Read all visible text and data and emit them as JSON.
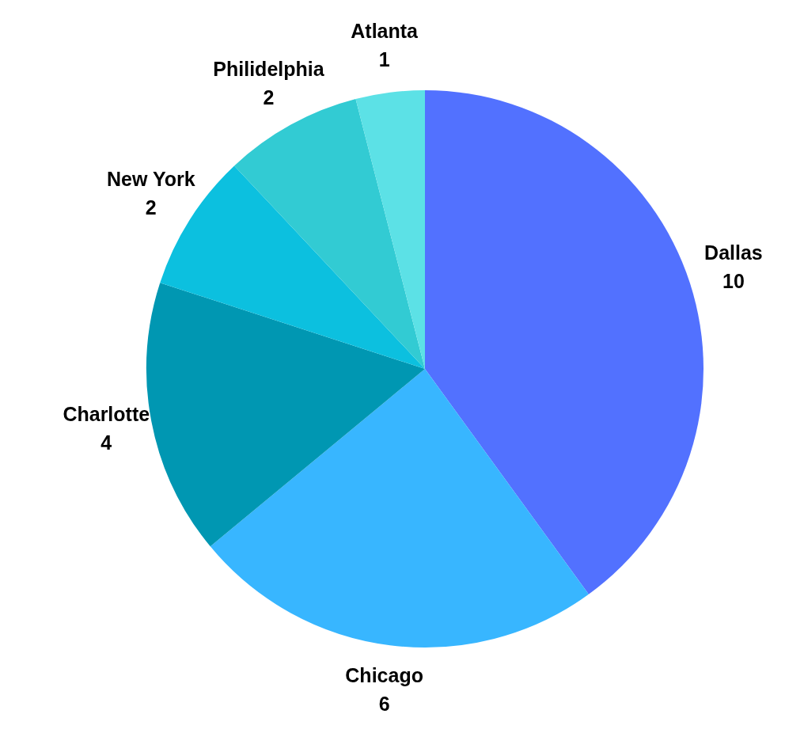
{
  "chart_data": {
    "type": "pie",
    "categories": [
      "Dallas",
      "Chicago",
      "Charlotte",
      "New York",
      "Philidelphia",
      "Atlanta"
    ],
    "values": [
      10,
      6,
      4,
      2,
      2,
      1
    ],
    "colors": [
      "#5271ff",
      "#38b6ff",
      "#0097b2",
      "#0cc0df",
      "#32cbd3",
      "#5ce1e6"
    ],
    "data_labels": true,
    "legend": false
  }
}
